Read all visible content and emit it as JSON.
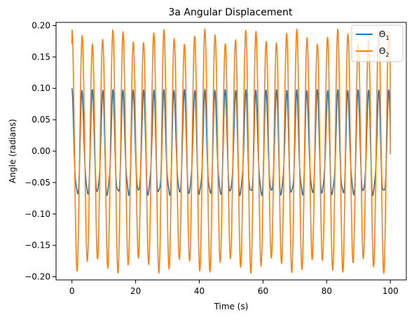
{
  "chart_data": {
    "type": "line",
    "title": "3a Angular Displacement",
    "xlabel": "Time (s)",
    "ylabel": "Angle (radians)",
    "xlim": [
      -5,
      105
    ],
    "ylim": [
      -0.205,
      0.205
    ],
    "xticks": [
      0,
      20,
      40,
      60,
      80,
      100
    ],
    "yticks": [
      -0.2,
      -0.15,
      -0.1,
      -0.05,
      0.0,
      0.05,
      0.1,
      0.15,
      0.2
    ],
    "ytick_labels": [
      "−0.20",
      "−0.15",
      "−0.10",
      "−0.05",
      "0.00",
      "0.05",
      "0.10",
      "0.15",
      "0.20"
    ],
    "xtick_labels": [
      "0",
      "20",
      "40",
      "60",
      "80",
      "100"
    ],
    "legend": {
      "placement": "top-right"
    },
    "grid": false,
    "series": [
      {
        "name": "Θ1",
        "label_main": "Θ",
        "label_sub": "1",
        "color": "#1f77b4",
        "description": "oscillation approx 0.07 to 0.10 amplitude, ~31 cycles over 0–100 s; starts at 0.10, ends at ~0.012",
        "x": [
          0,
          100
        ],
        "initial": 0.1,
        "final": 0.012,
        "amp_slow": 0.085,
        "amp_fast": 0.016,
        "freq_main": 0.3115,
        "freq_beat": 0.0715
      },
      {
        "name": "Θ2",
        "label_main": "Θ",
        "label_sub": "2",
        "color": "#ff7f0e",
        "description": "oscillation approx 0.17 to 0.195 amplitude, same frequency; starts at 0.17, ends near 0",
        "x": [
          0,
          100
        ],
        "initial": 0.17,
        "final": -0.005,
        "amp_slow": 0.182,
        "amp_fast": 0.012,
        "freq_main": 0.3115,
        "freq_beat": 0.0715
      }
    ]
  }
}
